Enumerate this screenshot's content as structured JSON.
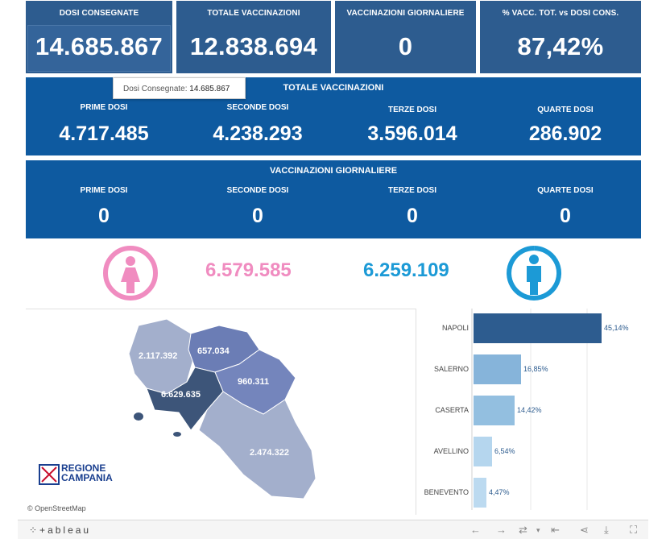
{
  "kpis": [
    {
      "title": "DOSI  CONSEGNATE",
      "value": "14.685.867"
    },
    {
      "title": "TOTALE VACCINAZIONI",
      "value": "12.838.694"
    },
    {
      "title": "VACCINAZIONI GIORNALIERE",
      "value": "0"
    },
    {
      "title": "% VACC. TOT. vs DOSI CONS.",
      "value": "87,42%"
    }
  ],
  "tooltip": {
    "label": "Dosi Consegnate:",
    "value": "14.685.867"
  },
  "totale": {
    "title": "TOTALE VACCINAZIONI",
    "cols": [
      {
        "label": "PRIME DOSI",
        "value": "4.717.485"
      },
      {
        "label": "SECONDE DOSI",
        "value": "4.238.293"
      },
      {
        "label": "TERZE DOSI",
        "value": "3.596.014"
      },
      {
        "label": "QUARTE DOSI",
        "value": "286.902"
      }
    ]
  },
  "giornaliere": {
    "title": "VACCINAZIONI GIORNALIERE",
    "cols": [
      {
        "label": "PRIME DOSI",
        "value": "0"
      },
      {
        "label": "SECONDE DOSI",
        "value": "0"
      },
      {
        "label": "TERZE DOSI",
        "value": "0"
      },
      {
        "label": "QUARTE DOSI",
        "value": "0"
      }
    ]
  },
  "gender": {
    "female": "6.579.585",
    "male": "6.259.109",
    "female_color": "#f08cc0",
    "male_color": "#1c9ad6"
  },
  "map": {
    "labels": {
      "caserta": "2.117.392",
      "benevento": "657.034",
      "avellino": "960.311",
      "napoli": "6.629.635",
      "salerno": "2.474.322"
    },
    "logo_line1": "REGIONE",
    "logo_line2": "CAMPANIA",
    "attribution": "© OpenStreetMap"
  },
  "provinces": [
    {
      "name": "NAPOLI",
      "pct": "45,14%",
      "value": 45.14,
      "color": "#2d5c8f"
    },
    {
      "name": "SALERNO",
      "pct": "16,85%",
      "value": 16.85,
      "color": "#86b4da"
    },
    {
      "name": "CASERTA",
      "pct": "14,42%",
      "value": 14.42,
      "color": "#93bfe0"
    },
    {
      "name": "AVELLINO",
      "pct": "6,54%",
      "value": 6.54,
      "color": "#b5d6ee"
    },
    {
      "name": "BENEVENTO",
      "pct": "4,47%",
      "value": 4.47,
      "color": "#bcdaf0"
    }
  ],
  "footer": {
    "logo": "⁘+ableau"
  }
}
